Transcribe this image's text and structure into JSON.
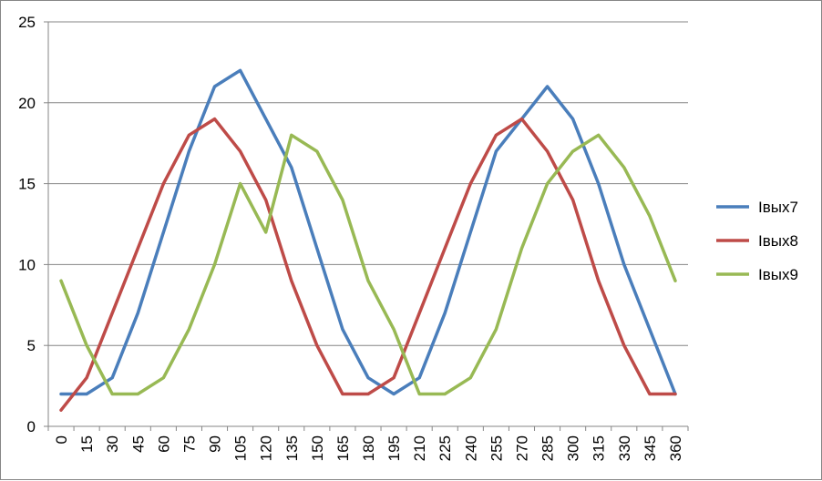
{
  "chart_data": {
    "type": "line",
    "title": "",
    "xlabel": "",
    "ylabel": "",
    "ylim": [
      0,
      25
    ],
    "yticks": [
      0,
      5,
      10,
      15,
      20,
      25
    ],
    "grid": "horizontal",
    "legend_position": "right",
    "categories": [
      "0",
      "15",
      "30",
      "45",
      "60",
      "75",
      "90",
      "105",
      "120",
      "135",
      "150",
      "165",
      "180",
      "195",
      "210",
      "225",
      "240",
      "255",
      "270",
      "285",
      "300",
      "315",
      "330",
      "345",
      "360"
    ],
    "series": [
      {
        "name": "Iвых7",
        "color": "#4A7EBB",
        "values": [
          2,
          2,
          3,
          7,
          12,
          17,
          21,
          22,
          19,
          16,
          11,
          6,
          3,
          2,
          3,
          7,
          12,
          17,
          19,
          21,
          19,
          15,
          10,
          6,
          2
        ]
      },
      {
        "name": "Iвых8",
        "color": "#BE4B48",
        "values": [
          1,
          3,
          7,
          11,
          15,
          18,
          19,
          17,
          14,
          9,
          5,
          2,
          2,
          3,
          7,
          11,
          15,
          18,
          19,
          17,
          14,
          9,
          5,
          2,
          2
        ]
      },
      {
        "name": "Iвых9",
        "color": "#98B954",
        "values": [
          9,
          5,
          2,
          2,
          3,
          6,
          10,
          15,
          12,
          18,
          17,
          14,
          9,
          6,
          2,
          2,
          3,
          6,
          11,
          15,
          17,
          18,
          16,
          13,
          9
        ]
      }
    ]
  }
}
